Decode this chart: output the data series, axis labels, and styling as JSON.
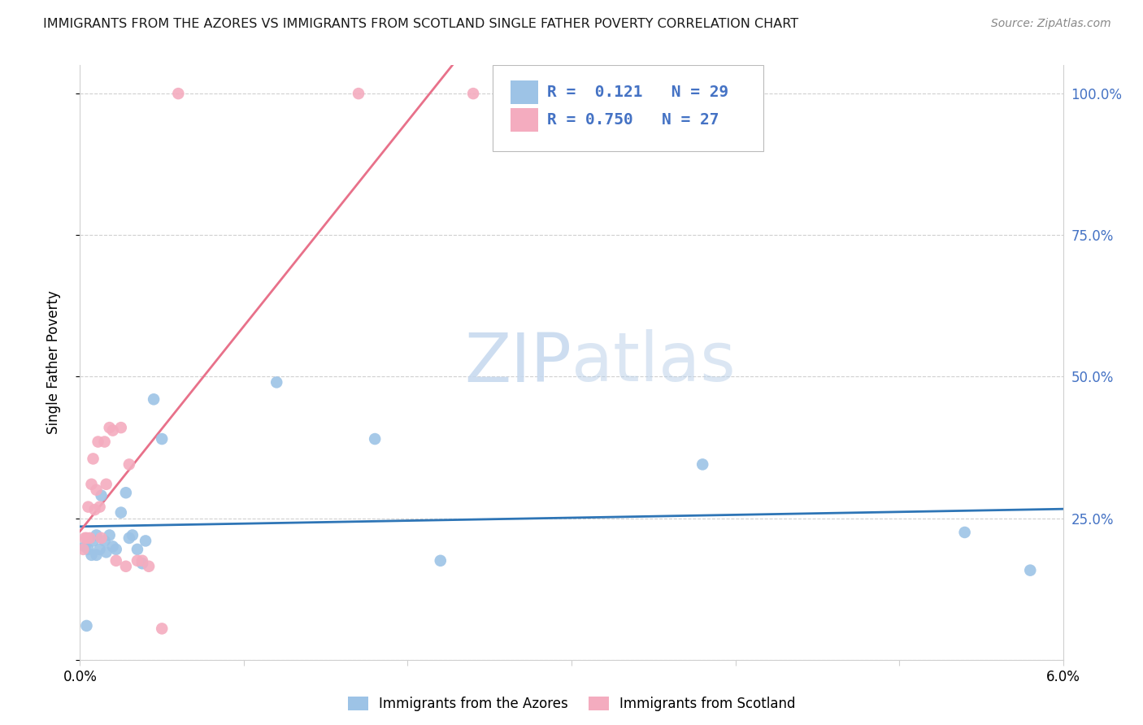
{
  "title": "IMMIGRANTS FROM THE AZORES VS IMMIGRANTS FROM SCOTLAND SINGLE FATHER POVERTY CORRELATION CHART",
  "source": "Source: ZipAtlas.com",
  "ylabel": "Single Father Poverty",
  "r_azores": 0.121,
  "n_azores": 29,
  "r_scotland": 0.75,
  "n_scotland": 27,
  "azores_color": "#9dc3e6",
  "scotland_color": "#f4acbf",
  "azores_line_color": "#2e75b6",
  "scotland_line_color": "#e8718a",
  "watermark_color": "#dce9f5",
  "right_label_color": "#4472c4",
  "grid_color": "#d0d0d0",
  "azores_x": [
    0.0003,
    0.0004,
    0.0005,
    0.0007,
    0.0008,
    0.001,
    0.001,
    0.0012,
    0.0013,
    0.0015,
    0.0016,
    0.0018,
    0.002,
    0.0022,
    0.0025,
    0.0028,
    0.003,
    0.0032,
    0.0035,
    0.0038,
    0.004,
    0.0045,
    0.005,
    0.012,
    0.018,
    0.022,
    0.038,
    0.054,
    0.058
  ],
  "azores_y": [
    0.2,
    0.06,
    0.195,
    0.185,
    0.21,
    0.22,
    0.185,
    0.195,
    0.29,
    0.21,
    0.19,
    0.22,
    0.2,
    0.195,
    0.26,
    0.295,
    0.215,
    0.22,
    0.195,
    0.17,
    0.21,
    0.46,
    0.39,
    0.49,
    0.39,
    0.175,
    0.345,
    0.225,
    0.158
  ],
  "scotland_x": [
    0.0002,
    0.0003,
    0.0004,
    0.0005,
    0.0006,
    0.0007,
    0.0008,
    0.0009,
    0.001,
    0.0011,
    0.0012,
    0.0013,
    0.0015,
    0.0016,
    0.0018,
    0.002,
    0.0022,
    0.0025,
    0.0028,
    0.003,
    0.0035,
    0.0038,
    0.0042,
    0.005,
    0.006,
    0.017,
    0.024
  ],
  "scotland_y": [
    0.195,
    0.215,
    0.215,
    0.27,
    0.215,
    0.31,
    0.355,
    0.265,
    0.3,
    0.385,
    0.27,
    0.215,
    0.385,
    0.31,
    0.41,
    0.405,
    0.175,
    0.41,
    0.165,
    0.345,
    0.175,
    0.175,
    0.165,
    0.055,
    1.0,
    1.0,
    1.0
  ],
  "xlim": [
    0.0,
    0.06
  ],
  "ylim": [
    0.0,
    1.05
  ],
  "ytick_positions": [
    0.0,
    0.25,
    0.5,
    0.75,
    1.0
  ],
  "ytick_labels_right": [
    "",
    "25.0%",
    "50.0%",
    "75.0%",
    "100.0%"
  ],
  "xtick_positions": [
    0.0,
    0.01,
    0.02,
    0.03,
    0.04,
    0.05,
    0.06
  ],
  "xtick_labels": [
    "0.0%",
    "",
    "",
    "",
    "",
    "",
    "6.0%"
  ],
  "bottom_legend_azores": "Immigrants from the Azores",
  "bottom_legend_scotland": "Immigrants from Scotland"
}
